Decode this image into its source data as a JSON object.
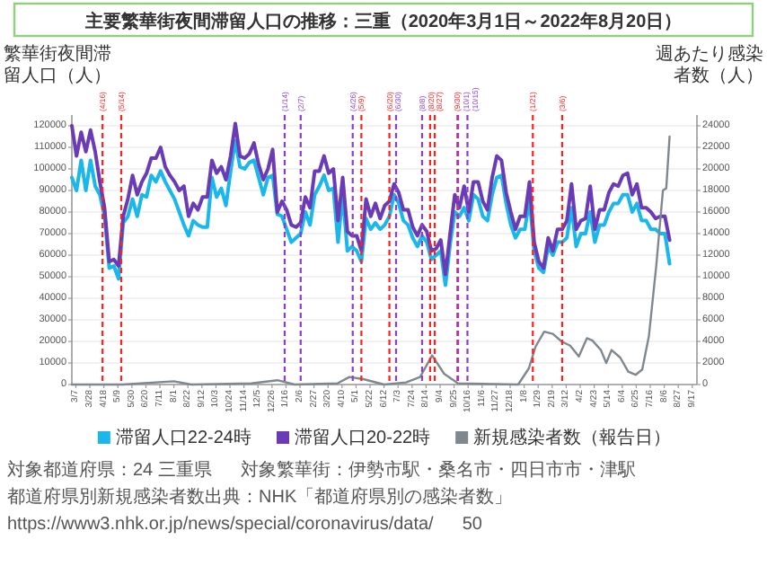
{
  "chart_data": {
    "type": "line",
    "title": "主要繁華街夜間滞留人口の推移：三重（2020年3月1日～2022年8月20日）",
    "ylabel": "繁華街夜間滞留人口（人）",
    "y2label": "週あたり感染者数（人）",
    "legend": "bottom",
    "grid": "y",
    "xlim": [
      "2020-03-01",
      "2022-09-24"
    ],
    "xticks": [
      {
        "value": "2020-03-07",
        "label": "3/7"
      },
      {
        "value": "2020-03-28",
        "label": "3/28"
      },
      {
        "value": "2020-04-18",
        "label": "4/18"
      },
      {
        "value": "2020-05-09",
        "label": "5/9"
      },
      {
        "value": "2020-05-30",
        "label": "5/30"
      },
      {
        "value": "2020-06-20",
        "label": "6/20"
      },
      {
        "value": "2020-07-11",
        "label": "7/11"
      },
      {
        "value": "2020-08-01",
        "label": "8/1"
      },
      {
        "value": "2020-08-22",
        "label": "8/22"
      },
      {
        "value": "2020-09-12",
        "label": "9/12"
      },
      {
        "value": "2020-10-03",
        "label": "10/3"
      },
      {
        "value": "2020-10-24",
        "label": "10/24"
      },
      {
        "value": "2020-11-14",
        "label": "11/14"
      },
      {
        "value": "2020-12-05",
        "label": "12/5"
      },
      {
        "value": "2020-12-26",
        "label": "12/26"
      },
      {
        "value": "2021-01-16",
        "label": "1/16"
      },
      {
        "value": "2021-02-06",
        "label": "2/6"
      },
      {
        "value": "2021-02-27",
        "label": "2/27"
      },
      {
        "value": "2021-03-20",
        "label": "3/20"
      },
      {
        "value": "2021-04-10",
        "label": "4/10"
      },
      {
        "value": "2021-05-01",
        "label": "5/1"
      },
      {
        "value": "2021-05-22",
        "label": "5/22"
      },
      {
        "value": "2021-06-12",
        "label": "6/12"
      },
      {
        "value": "2021-07-03",
        "label": "7/3"
      },
      {
        "value": "2021-07-24",
        "label": "7/24"
      },
      {
        "value": "2021-08-14",
        "label": "8/14"
      },
      {
        "value": "2021-09-04",
        "label": "9/4"
      },
      {
        "value": "2021-09-25",
        "label": "9/25"
      },
      {
        "value": "2021-10-16",
        "label": "10/16"
      },
      {
        "value": "2021-11-06",
        "label": "11/6"
      },
      {
        "value": "2021-11-27",
        "label": "11/27"
      },
      {
        "value": "2021-12-18",
        "label": "12/18"
      },
      {
        "value": "2022-01-08",
        "label": "1/8"
      },
      {
        "value": "2022-01-29",
        "label": "1/29"
      },
      {
        "value": "2022-02-19",
        "label": "2/19"
      },
      {
        "value": "2022-03-12",
        "label": "3/12"
      },
      {
        "value": "2022-04-02",
        "label": "4/2"
      },
      {
        "value": "2022-04-23",
        "label": "4/23"
      },
      {
        "value": "2022-05-14",
        "label": "5/14"
      },
      {
        "value": "2022-06-04",
        "label": "6/4"
      },
      {
        "value": "2022-06-25",
        "label": "6/25"
      },
      {
        "value": "2022-07-16",
        "label": "7/16"
      },
      {
        "value": "2022-08-06",
        "label": "8/6"
      },
      {
        "value": "2022-08-27",
        "label": "8/27"
      },
      {
        "value": "2022-09-17",
        "label": "9/17"
      }
    ],
    "ylim": [
      0,
      125000
    ],
    "yticks": [
      0,
      10000,
      20000,
      30000,
      40000,
      50000,
      60000,
      70000,
      80000,
      90000,
      100000,
      110000,
      120000
    ],
    "y2lim": [
      0,
      25000
    ],
    "y2ticks": [
      0,
      2000,
      4000,
      6000,
      8000,
      10000,
      12000,
      14000,
      16000,
      18000,
      20000,
      22000,
      24000
    ],
    "x": [
      "2020-03-01",
      "2020-03-08",
      "2020-03-15",
      "2020-03-22",
      "2020-03-29",
      "2020-04-05",
      "2020-04-12",
      "2020-04-19",
      "2020-04-26",
      "2020-05-03",
      "2020-05-10",
      "2020-05-17",
      "2020-05-24",
      "2020-05-31",
      "2020-06-07",
      "2020-06-14",
      "2020-06-21",
      "2020-06-28",
      "2020-07-05",
      "2020-07-12",
      "2020-07-19",
      "2020-07-26",
      "2020-08-02",
      "2020-08-09",
      "2020-08-16",
      "2020-08-23",
      "2020-08-30",
      "2020-09-06",
      "2020-09-13",
      "2020-09-20",
      "2020-09-27",
      "2020-10-04",
      "2020-10-11",
      "2020-10-18",
      "2020-10-25",
      "2020-11-01",
      "2020-11-08",
      "2020-11-15",
      "2020-11-22",
      "2020-11-29",
      "2020-12-06",
      "2020-12-13",
      "2020-12-20",
      "2020-12-27",
      "2021-01-03",
      "2021-01-10",
      "2021-01-17",
      "2021-01-24",
      "2021-01-31",
      "2021-02-07",
      "2021-02-14",
      "2021-02-21",
      "2021-02-28",
      "2021-03-07",
      "2021-03-14",
      "2021-03-21",
      "2021-03-28",
      "2021-04-04",
      "2021-04-11",
      "2021-04-18",
      "2021-04-25",
      "2021-05-02",
      "2021-05-09",
      "2021-05-16",
      "2021-05-23",
      "2021-05-30",
      "2021-06-06",
      "2021-06-13",
      "2021-06-20",
      "2021-06-27",
      "2021-07-04",
      "2021-07-11",
      "2021-07-18",
      "2021-07-25",
      "2021-08-01",
      "2021-08-08",
      "2021-08-15",
      "2021-08-22",
      "2021-08-29",
      "2021-09-05",
      "2021-09-12",
      "2021-09-19",
      "2021-09-26",
      "2021-10-03",
      "2021-10-10",
      "2021-10-17",
      "2021-10-24",
      "2021-10-31",
      "2021-11-07",
      "2021-11-14",
      "2021-11-21",
      "2021-11-28",
      "2021-12-05",
      "2021-12-12",
      "2021-12-19",
      "2021-12-26",
      "2022-01-02",
      "2022-01-09",
      "2022-01-16",
      "2022-01-23",
      "2022-01-30",
      "2022-02-06",
      "2022-02-13",
      "2022-02-20",
      "2022-02-27",
      "2022-03-06",
      "2022-03-13",
      "2022-03-20",
      "2022-03-27",
      "2022-04-03",
      "2022-04-10",
      "2022-04-17",
      "2022-04-24",
      "2022-05-01",
      "2022-05-08",
      "2022-05-15",
      "2022-05-22",
      "2022-05-29",
      "2022-06-05",
      "2022-06-12",
      "2022-06-19",
      "2022-06-26",
      "2022-07-03",
      "2022-07-10",
      "2022-07-17",
      "2022-07-24",
      "2022-07-31",
      "2022-08-07",
      "2022-08-14"
    ],
    "series": [
      {
        "name": "滞留人口22-24時",
        "color": "#1ab8ea",
        "values": [
          96000,
          90000,
          104000,
          90000,
          104000,
          92000,
          88000,
          78000,
          54000,
          55000,
          49000,
          75000,
          78000,
          86000,
          78000,
          88000,
          87000,
          97000,
          94000,
          99000,
          94000,
          90000,
          86000,
          80000,
          74000,
          69000,
          76000,
          74000,
          73000,
          73000,
          96000,
          87000,
          91000,
          83000,
          99000,
          113000,
          101000,
          100000,
          103000,
          104000,
          96000,
          88000,
          96000,
          97000,
          79000,
          78000,
          72000,
          66000,
          68000,
          70000,
          80000,
          74000,
          88000,
          92000,
          97000,
          90000,
          91000,
          66000,
          88000,
          62000,
          64000,
          62000,
          57000,
          77000,
          72000,
          75000,
          72000,
          74000,
          78000,
          88000,
          84000,
          76000,
          74000,
          68000,
          64000,
          69000,
          66000,
          58000,
          60000,
          62000,
          46000,
          65000,
          80000,
          78000,
          82000,
          76000,
          88000,
          86000,
          78000,
          76000,
          88000,
          96000,
          97000,
          84000,
          74000,
          68000,
          72000,
          72000,
          86000,
          62000,
          54000,
          52000,
          64000,
          60000,
          66000,
          66000,
          68000,
          82000,
          64000,
          70000,
          70000,
          80000,
          66000,
          74000,
          74000,
          80000,
          84000,
          84000,
          88000,
          88000,
          80000,
          84000,
          76000,
          76000,
          72000,
          72000,
          70000,
          70000,
          56000
        ]
      },
      {
        "name": "滞留人口20-22時",
        "color": "#6a3bb5",
        "values": [
          120000,
          106000,
          117000,
          108000,
          118000,
          108000,
          94000,
          82000,
          57000,
          58000,
          55000,
          78000,
          86000,
          97000,
          88000,
          94000,
          98000,
          105000,
          105000,
          110000,
          101000,
          97000,
          94000,
          90000,
          92000,
          78000,
          84000,
          81000,
          87000,
          87000,
          104000,
          98000,
          101000,
          95000,
          106000,
          121000,
          106000,
          105000,
          107000,
          112000,
          102000,
          95000,
          100000,
          109000,
          80000,
          85000,
          81000,
          74000,
          73000,
          75000,
          87000,
          82000,
          99000,
          99000,
          106000,
          98000,
          100000,
          76000,
          96000,
          71000,
          69000,
          69000,
          62000,
          86000,
          78000,
          84000,
          77000,
          83000,
          85000,
          93000,
          89000,
          81000,
          81000,
          73000,
          69000,
          74000,
          71000,
          62000,
          63000,
          67000,
          51000,
          70000,
          88000,
          82000,
          92000,
          80000,
          94000,
          94000,
          85000,
          81000,
          96000,
          106000,
          104000,
          89000,
          80000,
          72000,
          78000,
          78000,
          94000,
          66000,
          57000,
          54000,
          68000,
          62000,
          72000,
          72000,
          76000,
          93000,
          72000,
          76000,
          77000,
          92000,
          72000,
          81000,
          81000,
          89000,
          93000,
          92000,
          97000,
          98000,
          88000,
          93000,
          82000,
          82000,
          80000,
          77000,
          78000,
          78000,
          67000
        ]
      },
      {
        "name": "新規感染者数（報告日）",
        "color": "#7f878f",
        "axis": "y2",
        "x": [
          "2020-03-01",
          "2020-05-16",
          "2020-08-01",
          "2020-08-27",
          "2020-11-25",
          "2021-01-03",
          "2021-01-29",
          "2021-04-03",
          "2021-04-21",
          "2021-05-12",
          "2021-06-12",
          "2021-07-15",
          "2021-08-05",
          "2021-08-23",
          "2021-09-10",
          "2021-10-01",
          "2021-12-30",
          "2022-01-15",
          "2022-01-25",
          "2022-02-07",
          "2022-02-20",
          "2022-03-05",
          "2022-03-18",
          "2022-03-31",
          "2022-04-12",
          "2022-04-20",
          "2022-05-03",
          "2022-05-11",
          "2022-05-19",
          "2022-06-01",
          "2022-06-13",
          "2022-06-24",
          "2022-07-04",
          "2022-07-14",
          "2022-07-25",
          "2022-08-04",
          "2022-08-09",
          "2022-08-14"
        ],
        "values": [
          0,
          0,
          300,
          0,
          100,
          400,
          0,
          100,
          700,
          500,
          0,
          200,
          700,
          2700,
          1000,
          100,
          0,
          1500,
          3500,
          4900,
          4700,
          4000,
          3600,
          2600,
          4300,
          4100,
          3200,
          2000,
          3200,
          2500,
          1200,
          900,
          1400,
          4500,
          11000,
          18000,
          18200,
          23000
        ]
      }
    ],
    "ref_lines": [
      {
        "axis": "x",
        "value": "2020-04-16",
        "label": "(4/16)",
        "color": "#ff2020",
        "line_style": "dashed"
      },
      {
        "axis": "x",
        "value": "2020-05-14",
        "label": "(5/14)",
        "color": "#ff2020",
        "line_style": "dashed"
      },
      {
        "axis": "x",
        "value": "2021-01-14",
        "label": "(1/14)",
        "color": "#8a3fd1",
        "line_style": "dashed"
      },
      {
        "axis": "x",
        "value": "2021-02-07",
        "label": "(2/7)",
        "color": "#8a3fd1",
        "line_style": "dashed"
      },
      {
        "axis": "x",
        "value": "2021-04-26",
        "label": "(4/26)",
        "color": "#8a3fd1",
        "line_style": "dashed"
      },
      {
        "axis": "x",
        "value": "2021-05-09",
        "label": "(5/9)",
        "color": "#ff2020",
        "line_style": "dashed"
      },
      {
        "axis": "x",
        "value": "2021-06-20",
        "label": "(6/20)",
        "color": "#ff2020",
        "line_style": "dashed"
      },
      {
        "axis": "x",
        "value": "2021-06-30",
        "label": "(6/30)",
        "color": "#8a3fd1",
        "line_style": "dashed"
      },
      {
        "axis": "x",
        "value": "2021-08-08",
        "label": "(8/8)",
        "color": "#8a3fd1",
        "line_style": "dashed"
      },
      {
        "axis": "x",
        "value": "2021-08-20",
        "label": "(8/20)",
        "color": "#ff2020",
        "line_style": "dashed"
      },
      {
        "axis": "x",
        "value": "2021-08-27",
        "label": "(8/27)",
        "color": "#ff2020",
        "line_style": "dashed"
      },
      {
        "axis": "x",
        "value": "2021-09-30",
        "label": "(9/30)",
        "color": "#ff2020",
        "line_style": "dashed"
      },
      {
        "axis": "x",
        "value": "2021-10-01",
        "label": "(10/1)",
        "color": "#8a3fd1",
        "line_style": "dashed"
      },
      {
        "axis": "x",
        "value": "2021-10-15",
        "label": "(10/15)",
        "color": "#8a3fd1",
        "line_style": "dashed"
      },
      {
        "axis": "x",
        "value": "2022-01-21",
        "label": "(1/21)",
        "color": "#ff2020",
        "line_style": "dashed"
      },
      {
        "axis": "x",
        "value": "2022-03-06",
        "label": "(3/6)",
        "color": "#ff2020",
        "line_style": "dashed"
      }
    ],
    "annotations": [
      "対象都道府県：24 三重県",
      "対象繁華街：伊勢市駅・桑名市・四日市市・津駅",
      "都道府県別新規感染者数出典：NHK「都道府県別の感染者数」",
      "https://www3.nhk.or.jp/news/special/coronavirus/data/",
      "50"
    ]
  }
}
